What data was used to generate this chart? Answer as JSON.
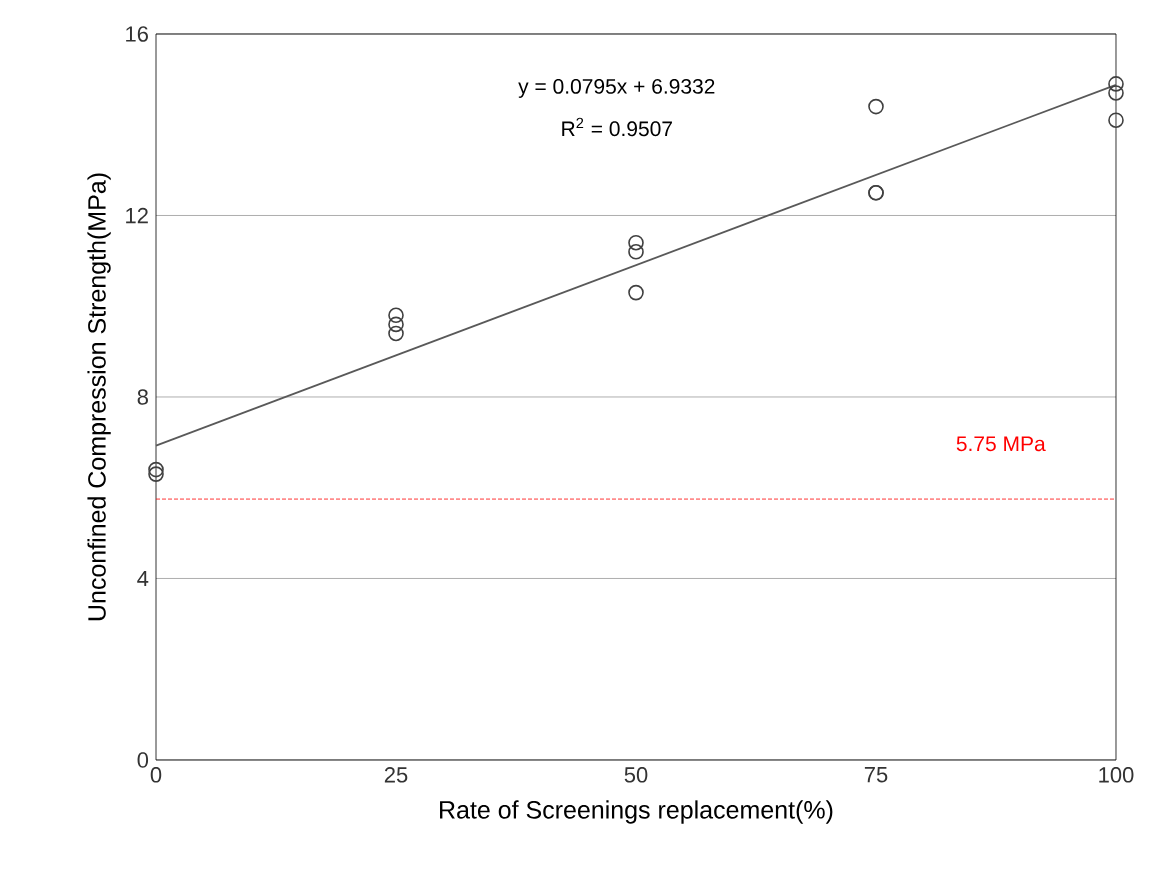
{
  "chart_data": {
    "type": "scatter",
    "xlabel": "Rate  of  Screenings replacement(%)",
    "ylabel": "Unconfined Compression Strength(MPa)",
    "xlim": [
      0,
      100
    ],
    "xticks": [
      0,
      25,
      50,
      75,
      100
    ],
    "ylim": [
      0,
      16
    ],
    "yticks": [
      0,
      4,
      8,
      12,
      16
    ],
    "grid": "y",
    "marker": "circle",
    "series": [
      {
        "color": "#404040",
        "x": [
          0,
          0,
          25,
          25,
          25,
          50,
          50,
          50,
          75,
          75,
          75,
          100,
          100,
          100
        ],
        "values": [
          6.3,
          6.4,
          9.8,
          9.6,
          9.4,
          11.4,
          11.2,
          10.3,
          14.4,
          12.5,
          12.5,
          14.9,
          14.7,
          14.1
        ]
      },
      {
        "type": "line",
        "marker": "none",
        "color": "#595959",
        "x": [
          0,
          100
        ],
        "values": [
          6.93,
          14.88
        ]
      }
    ],
    "ref_lines": [
      {
        "axis": "y",
        "value": 5.75,
        "label": "5.75 MPa",
        "color": "#ff0000",
        "line_style": "dashed"
      }
    ],
    "annotations": [
      "y = 0.0795x + 6.9332",
      "R$^{2}$ = 0.9507"
    ]
  }
}
